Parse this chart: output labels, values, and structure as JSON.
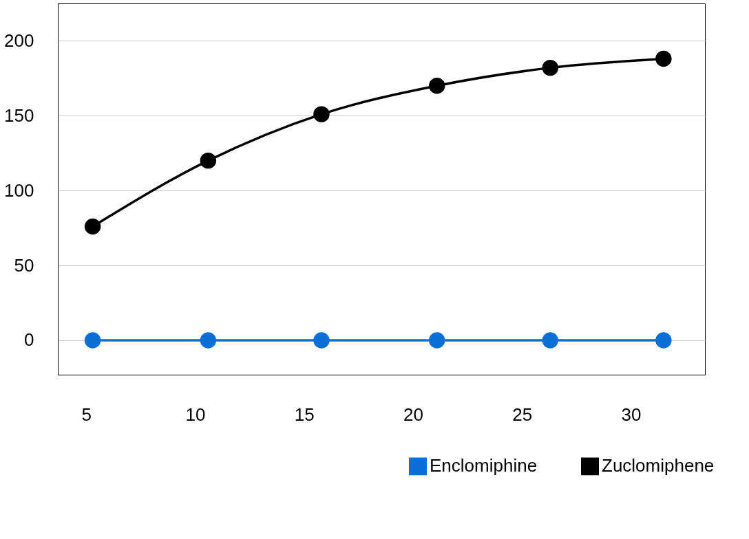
{
  "chart_data": {
    "type": "line",
    "x": [
      5.3,
      10.6,
      15.8,
      21.1,
      26.3,
      31.5
    ],
    "series": [
      {
        "name": "Enclomiphine",
        "color": "#0a6fd6",
        "values": [
          0,
          0,
          0,
          0,
          0,
          0
        ]
      },
      {
        "name": "Zuclomiphene",
        "color": "#000000",
        "values": [
          76,
          120,
          151,
          170,
          182,
          188
        ]
      }
    ],
    "xlim": [
      3.7,
      33.4
    ],
    "xticks": [
      5,
      10,
      15,
      20,
      25,
      30
    ],
    "ylim": [
      -23,
      225
    ],
    "yticks": [
      0,
      50,
      100,
      150,
      200
    ],
    "grid": "y",
    "legend": "bottom right",
    "marker": "circle",
    "line_style": "solid"
  }
}
